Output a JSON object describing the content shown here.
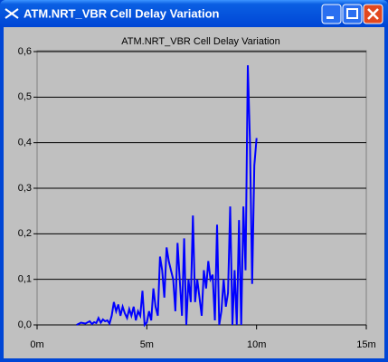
{
  "window": {
    "title": "ATM.NRT_VBR Cell Delay Variation"
  },
  "chart_data": {
    "type": "line",
    "title": "ATM.NRT_VBR Cell Delay Variation",
    "x": [
      1.8,
      2.0,
      2.2,
      2.4,
      2.5,
      2.6,
      2.7,
      2.8,
      2.9,
      3.0,
      3.1,
      3.2,
      3.3,
      3.4,
      3.5,
      3.6,
      3.7,
      3.8,
      3.9,
      4.0,
      4.1,
      4.2,
      4.3,
      4.4,
      4.5,
      4.6,
      4.7,
      4.8,
      4.9,
      5.0,
      5.1,
      5.2,
      5.3,
      5.4,
      5.5,
      5.6,
      5.7,
      5.8,
      5.9,
      6.0,
      6.1,
      6.2,
      6.3,
      6.4,
      6.5,
      6.6,
      6.7,
      6.8,
      6.9,
      7.0,
      7.1,
      7.2,
      7.3,
      7.5,
      7.6,
      7.7,
      7.8,
      7.9,
      8.0,
      8.1,
      8.2,
      8.3,
      8.4,
      8.5,
      8.6,
      8.7,
      8.8,
      8.9,
      9.0,
      9.1,
      9.2,
      9.3,
      9.4,
      9.5,
      9.6,
      9.7,
      9.8,
      9.9,
      10.0
    ],
    "series": [
      {
        "name": "ATM.NRT_VBR Cell Delay Variation",
        "color": "#0000ff",
        "values": [
          0.0,
          0.005,
          0.003,
          0.008,
          0.002,
          0.006,
          0.004,
          0.015,
          0.005,
          0.012,
          0.008,
          0.01,
          0.003,
          0.02,
          0.05,
          0.03,
          0.045,
          0.02,
          0.04,
          0.025,
          0.015,
          0.035,
          0.02,
          0.04,
          0.01,
          0.03,
          0.02,
          0.075,
          0.0,
          0.005,
          0.03,
          0.01,
          0.08,
          0.04,
          0.02,
          0.15,
          0.12,
          0.06,
          0.17,
          0.14,
          0.12,
          0.1,
          0.03,
          0.18,
          0.1,
          0.02,
          0.19,
          0.0,
          0.1,
          0.05,
          0.24,
          0.05,
          0.1,
          0.02,
          0.12,
          0.08,
          0.14,
          0.1,
          0.11,
          0.01,
          0.22,
          0.0,
          0.03,
          0.1,
          0.04,
          0.07,
          0.26,
          0.0,
          0.12,
          0.0,
          0.23,
          0.0,
          0.26,
          0.12,
          0.57,
          0.4,
          0.09,
          0.35,
          0.41
        ]
      }
    ],
    "xlim": [
      0,
      15
    ],
    "xticks": [
      {
        "value": 0,
        "label": "0m"
      },
      {
        "value": 5,
        "label": "5m"
      },
      {
        "value": 10,
        "label": "10m"
      },
      {
        "value": 15,
        "label": "15m"
      }
    ],
    "ylim": [
      0,
      0.6
    ],
    "yticks": [
      {
        "value": 0,
        "label": "0,0"
      },
      {
        "value": 0.1,
        "label": "0,1"
      },
      {
        "value": 0.2,
        "label": "0,2"
      },
      {
        "value": 0.3,
        "label": "0,3"
      },
      {
        "value": 0.4,
        "label": "0,4"
      },
      {
        "value": 0.5,
        "label": "0,5"
      },
      {
        "value": 0.6,
        "label": "0,6"
      }
    ],
    "grid": true
  }
}
